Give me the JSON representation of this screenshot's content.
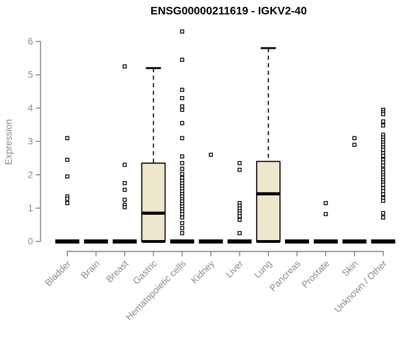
{
  "chart_data": {
    "type": "boxplot",
    "title": "ENSG00000211619 - IGKV2-40",
    "ylabel": "Expression",
    "yticks": [
      0,
      1,
      2,
      3,
      4,
      5,
      6
    ],
    "ylim": [
      0,
      6.5
    ],
    "grid": false,
    "legend": "none",
    "box_fill": "#EDE7CE",
    "box_stroke": "#000000",
    "axis_color": "#7E7E7E",
    "text_color": "#8A8A8A",
    "title_color": "#000000",
    "series": [
      {
        "category": "Bladder",
        "q1": 0,
        "median": 0,
        "q3": 0,
        "whisker_low": 0,
        "whisker_high": 0,
        "outliers": [
          3.1,
          2.45,
          1.95,
          1.35,
          1.28,
          1.15
        ]
      },
      {
        "category": "Brain",
        "q1": 0,
        "median": 0,
        "q3": 0,
        "whisker_low": 0,
        "whisker_high": 0,
        "outliers": []
      },
      {
        "category": "Breast",
        "q1": 0,
        "median": 0,
        "q3": 0,
        "whisker_low": 0,
        "whisker_high": 0,
        "outliers": [
          5.25,
          2.3,
          1.75,
          1.55,
          1.25,
          1.1,
          1.03
        ]
      },
      {
        "category": "Gastric",
        "q1": 0,
        "median": 0.85,
        "q3": 2.35,
        "whisker_low": 0,
        "whisker_high": 5.2,
        "outliers": []
      },
      {
        "category": "Hematopoietic cells",
        "q1": 0,
        "median": 0,
        "q3": 0,
        "whisker_low": 0,
        "whisker_high": 0,
        "outliers": [
          6.3,
          5.45,
          4.55,
          4.3,
          4.05,
          3.95,
          3.55,
          3.1,
          2.55,
          2.35,
          2.18,
          2.03,
          1.9,
          1.82,
          1.74,
          1.66,
          1.58,
          1.5,
          1.42,
          1.35,
          1.27,
          1.2,
          1.12,
          1.05,
          0.97,
          0.9,
          0.82,
          0.72,
          0.55,
          0.4,
          0.25
        ]
      },
      {
        "category": "Kidney",
        "q1": 0,
        "median": 0,
        "q3": 0,
        "whisker_low": 0,
        "whisker_high": 0,
        "outliers": [
          2.6
        ]
      },
      {
        "category": "Liver",
        "q1": 0,
        "median": 0,
        "q3": 0,
        "whisker_low": 0,
        "whisker_high": 0,
        "outliers": [
          2.35,
          2.15,
          1.15,
          1.07,
          0.99,
          0.91,
          0.84,
          0.76,
          0.65,
          0.25
        ]
      },
      {
        "category": "Lung",
        "q1": 0,
        "median": 1.43,
        "q3": 2.4,
        "whisker_low": 0,
        "whisker_high": 5.8,
        "outliers": []
      },
      {
        "category": "Pancreas",
        "q1": 0,
        "median": 0,
        "q3": 0,
        "whisker_low": 0,
        "whisker_high": 0,
        "outliers": []
      },
      {
        "category": "Prostate",
        "q1": 0,
        "median": 0,
        "q3": 0,
        "whisker_low": 0,
        "whisker_high": 0,
        "outliers": [
          1.15,
          0.82
        ]
      },
      {
        "category": "Skin",
        "q1": 0,
        "median": 0,
        "q3": 0,
        "whisker_low": 0,
        "whisker_high": 0,
        "outliers": [
          3.1,
          2.9
        ]
      },
      {
        "category": "Unknown / Other",
        "q1": 0,
        "median": 0,
        "q3": 0,
        "whisker_low": 0,
        "whisker_high": 0,
        "outliers": [
          3.95,
          3.88,
          3.82,
          3.6,
          3.48,
          3.2,
          3.12,
          3.05,
          2.97,
          2.9,
          2.82,
          2.75,
          2.65,
          2.57,
          2.45,
          2.37,
          2.28,
          2.15,
          2.07,
          1.99,
          1.92,
          1.84,
          1.77,
          1.7,
          1.6,
          1.51,
          1.42,
          1.3,
          1.22,
          0.85,
          0.72
        ]
      }
    ]
  }
}
